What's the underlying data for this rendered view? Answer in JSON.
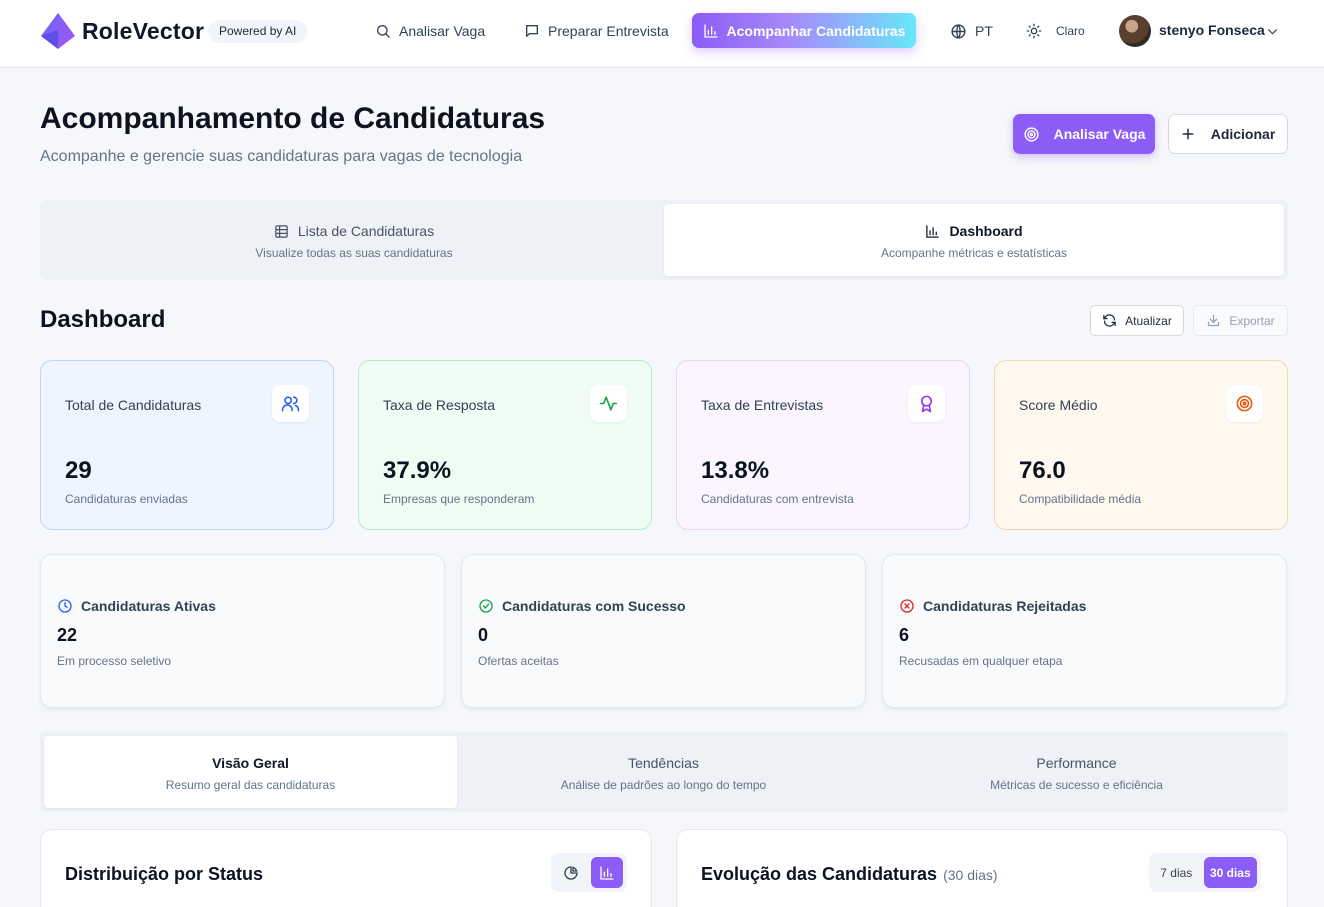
{
  "app": {
    "brand": "RoleVector",
    "powered_badge": "Powered by AI"
  },
  "nav": {
    "analyze_job": "Analisar Vaga",
    "prepare_interview": "Preparar Entrevista",
    "track_applications": "Acompanhar Candidaturas",
    "language": "PT",
    "theme": "Claro",
    "user_name": "stenyo Fonseca"
  },
  "header": {
    "title": "Acompanhamento de Candidaturas",
    "subtitle": "Acompanhe e gerencie suas candidaturas para vagas de tecnologia",
    "analyze_button": "Analisar Vaga",
    "add_button": "Adicionar"
  },
  "main_tabs": [
    {
      "label": "Lista de Candidaturas",
      "desc": "Visualize todas as suas candidaturas",
      "active": false
    },
    {
      "label": "Dashboard",
      "desc": "Acompanhe métricas e estatísticas",
      "active": true
    }
  ],
  "dashboard": {
    "title": "Dashboard",
    "refresh_button": "Atualizar",
    "export_button": "Exportar"
  },
  "stats": [
    {
      "label": "Total de Candidaturas",
      "value": "29",
      "desc": "Candidaturas enviadas",
      "icon": "users-icon",
      "bg": "#eff5ff",
      "border": "#bfd3f5",
      "accent": "#2563eb"
    },
    {
      "label": "Taxa de Resposta",
      "value": "37.9%",
      "desc": "Empresas que responderam",
      "icon": "activity-icon",
      "bg": "#effcf3",
      "border": "#b6ebc8",
      "accent": "#16a34a"
    },
    {
      "label": "Taxa de Entrevistas",
      "value": "13.8%",
      "desc": "Candidaturas com entrevista",
      "icon": "award-icon",
      "bg": "#faf5ff",
      "border": "#e6d5fa",
      "accent": "#9333ea"
    },
    {
      "label": "Score Médio",
      "value": "76.0",
      "desc": "Compatibilidade média",
      "icon": "target-icon",
      "bg": "#fff8ef",
      "border": "#f8d6ad",
      "accent": "#ea580c"
    }
  ],
  "summary": [
    {
      "label": "Candidaturas Ativas",
      "value": "22",
      "desc": "Em processo seletivo",
      "icon": "clock-icon",
      "color": "#2563eb"
    },
    {
      "label": "Candidaturas com Sucesso",
      "value": "0",
      "desc": "Ofertas aceitas",
      "icon": "check-circle-icon",
      "color": "#16a34a"
    },
    {
      "label": "Candidaturas Rejeitadas",
      "value": "6",
      "desc": "Recusadas em qualquer etapa",
      "icon": "x-circle-icon",
      "color": "#dc2626"
    }
  ],
  "sub_tabs": [
    {
      "label": "Visão Geral",
      "desc": "Resumo geral das candidaturas",
      "active": true
    },
    {
      "label": "Tendências",
      "desc": "Análise de padrões ao longo do tempo",
      "active": false
    },
    {
      "label": "Performance",
      "desc": "Métricas de sucesso e eficiência",
      "active": false
    }
  ],
  "panels": {
    "status_title": "Distribuição por Status",
    "evolution_title": "Evolução das Candidaturas",
    "evolution_period": "(30 dias)",
    "range_7": "7 dias",
    "range_30": "30 dias"
  },
  "colors": {
    "accent": "#8b5cf6"
  }
}
